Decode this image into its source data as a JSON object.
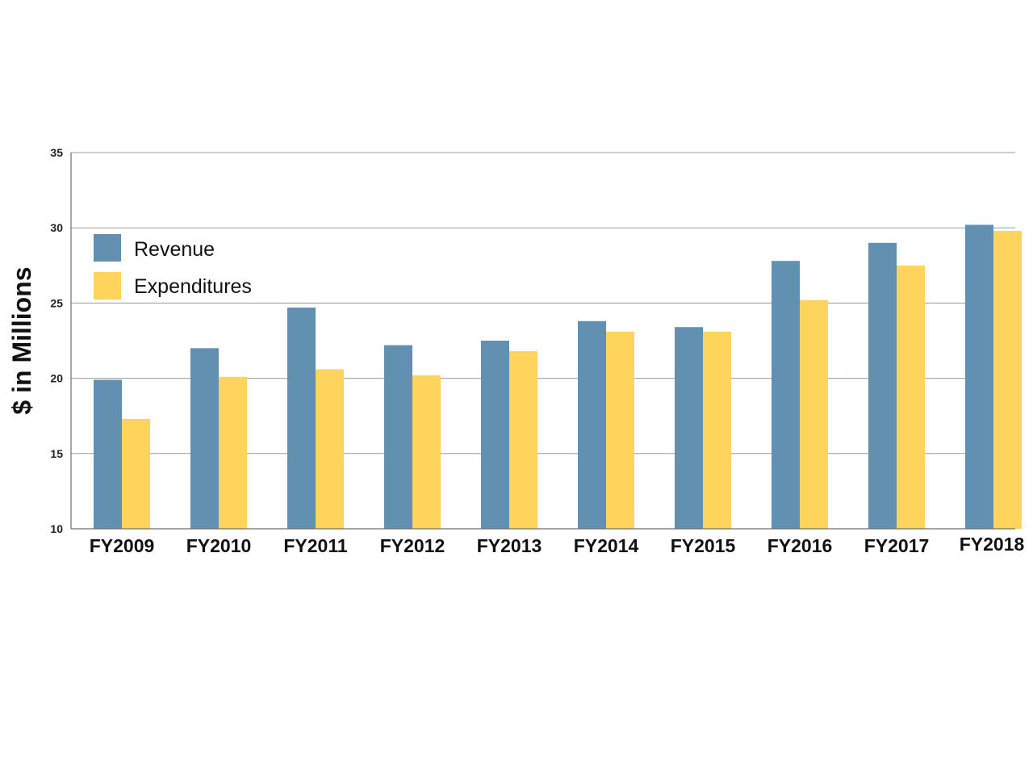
{
  "chart_data": {
    "type": "bar",
    "title": "",
    "xlabel": "",
    "ylabel": "$ in Millions",
    "ylim": [
      10,
      35
    ],
    "yticks": [
      10,
      15,
      20,
      25,
      30,
      35
    ],
    "grid": true,
    "legend_position": "top-left",
    "categories": [
      "FY2009",
      "FY2010",
      "FY2011",
      "FY2012",
      "FY2013",
      "FY2014",
      "FY2015",
      "FY2016",
      "FY2017",
      "FY2018"
    ],
    "series": [
      {
        "name": "Revenue",
        "color": "#6290b0",
        "values": [
          19.9,
          22.0,
          24.7,
          22.2,
          22.5,
          23.8,
          23.4,
          27.8,
          29.0,
          30.2
        ]
      },
      {
        "name": "Expenditures",
        "color": "#ffd45c",
        "values": [
          17.3,
          20.1,
          20.6,
          20.2,
          21.8,
          23.1,
          23.1,
          25.2,
          27.5,
          29.8
        ]
      }
    ]
  }
}
